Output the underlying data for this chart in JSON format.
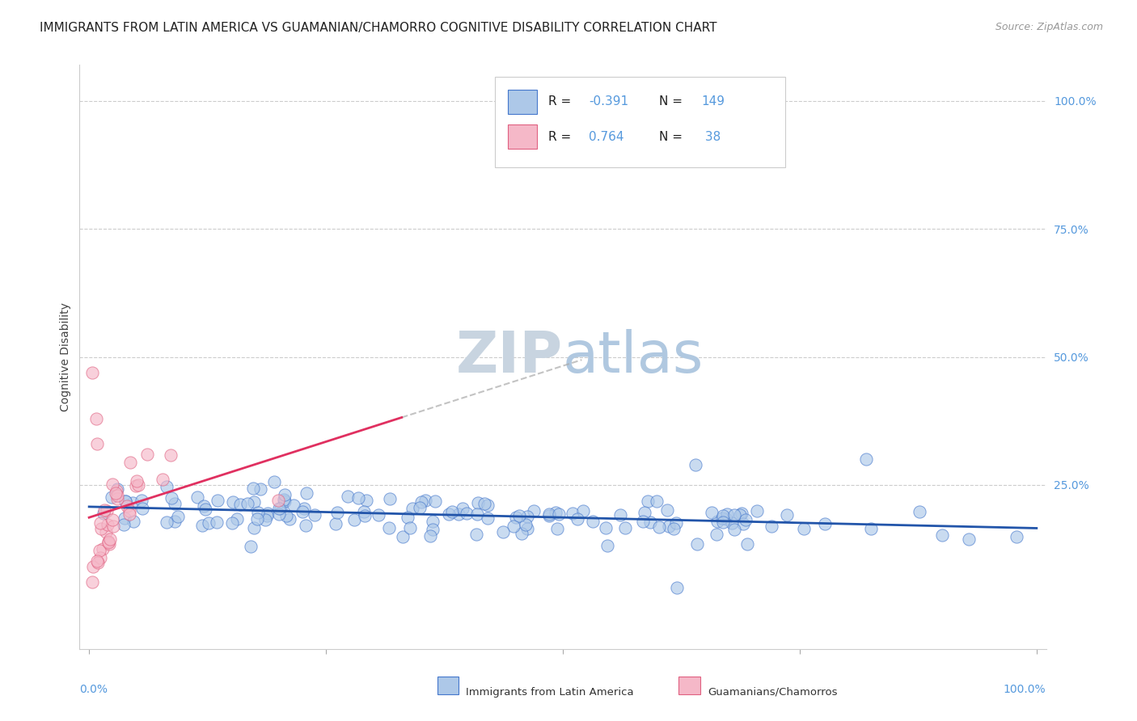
{
  "title": "IMMIGRANTS FROM LATIN AMERICA VS GUAMANIAN/CHAMORRO COGNITIVE DISABILITY CORRELATION CHART",
  "source": "Source: ZipAtlas.com",
  "ylabel": "Cognitive Disability",
  "xlim": [
    0.0,
    1.0
  ],
  "ylim": [
    0.0,
    1.0
  ],
  "blue_R": -0.391,
  "blue_N": 149,
  "pink_R": 0.764,
  "pink_N": 38,
  "blue_color": "#adc8e8",
  "blue_edge_color": "#4477cc",
  "blue_line_color": "#2255aa",
  "pink_color": "#f5b8c8",
  "pink_edge_color": "#e06080",
  "pink_line_color": "#e03060",
  "background_color": "#ffffff",
  "watermark": "ZIPatlas",
  "legend_label_blue": "Immigrants from Latin America",
  "legend_label_pink": "Guamanians/Chamorros",
  "grid_color": "#cccccc",
  "title_fontsize": 11,
  "axis_label_fontsize": 10,
  "tick_label_fontsize": 10,
  "legend_fontsize": 11,
  "watermark_color": "#ccd8e8",
  "right_tick_color": "#5599dd"
}
